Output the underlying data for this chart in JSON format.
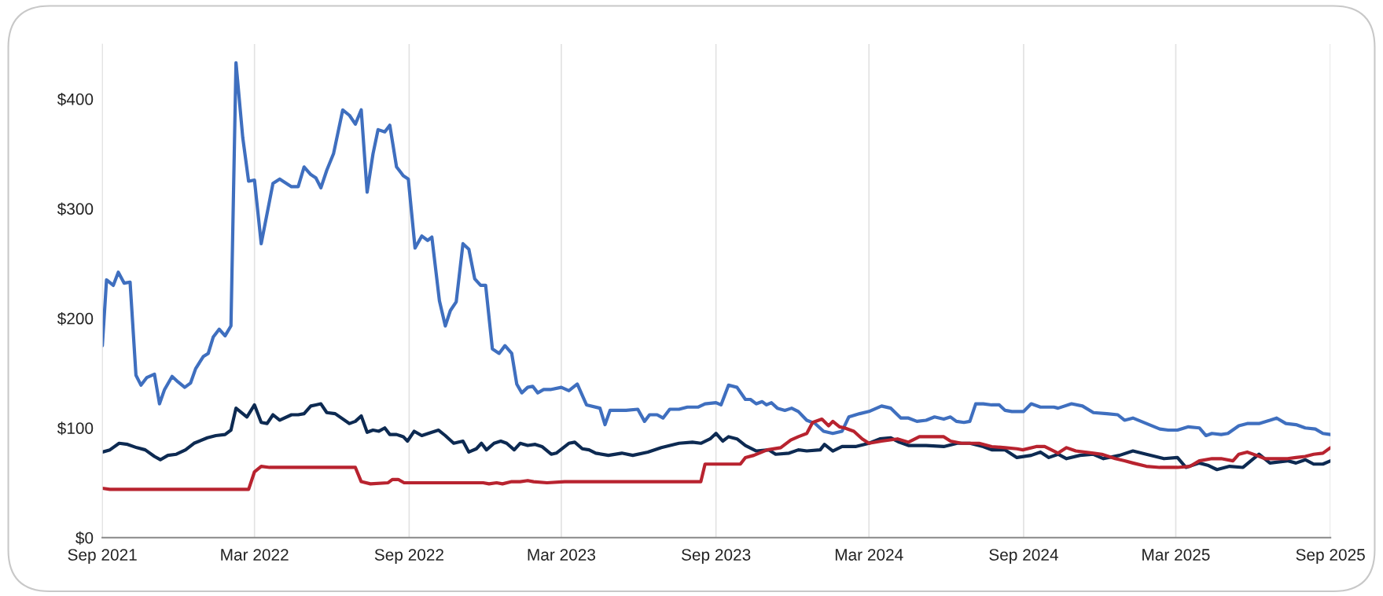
{
  "chart_data": {
    "type": "line",
    "xlim": [
      "2021-09-01",
      "2025-09-01"
    ],
    "xticks": [
      {
        "value": "2021-09-01",
        "label": "Sep 2021"
      },
      {
        "value": "2022-03-01",
        "label": "Mar 2022"
      },
      {
        "value": "2022-09-01",
        "label": "Sep 2022"
      },
      {
        "value": "2023-03-01",
        "label": "Mar 2023"
      },
      {
        "value": "2023-09-01",
        "label": "Sep 2023"
      },
      {
        "value": "2024-03-01",
        "label": "Mar 2024"
      },
      {
        "value": "2024-09-01",
        "label": "Sep 2024"
      },
      {
        "value": "2025-03-01",
        "label": "Mar 2025"
      },
      {
        "value": "2025-09-01",
        "label": "Sep 2025"
      }
    ],
    "ylim": [
      0,
      450
    ],
    "yticks": [
      {
        "value": 0,
        "label": "$0"
      },
      {
        "value": 100,
        "label": "$100"
      },
      {
        "value": 200,
        "label": "$200"
      },
      {
        "value": 300,
        "label": "$300"
      },
      {
        "value": 400,
        "label": "$400"
      }
    ],
    "grid": "x",
    "marker": "none",
    "line_style": "solid",
    "series": [
      {
        "color": "#3f6fbf",
        "x": [
          "2021-09-01",
          "2021-09-06",
          "2021-09-14",
          "2021-09-20",
          "2021-09-27",
          "2021-10-04",
          "2021-10-11",
          "2021-10-17",
          "2021-10-24",
          "2021-11-02",
          "2021-11-08",
          "2021-11-14",
          "2021-11-23",
          "2021-11-30",
          "2021-12-08",
          "2021-12-15",
          "2021-12-21",
          "2021-12-30",
          "2022-01-05",
          "2022-01-11",
          "2022-01-18",
          "2022-01-25",
          "2022-02-01",
          "2022-02-07",
          "2022-02-15",
          "2022-02-22",
          "2022-03-01",
          "2022-03-09",
          "2022-03-23",
          "2022-03-31",
          "2022-04-14",
          "2022-04-22",
          "2022-04-29",
          "2022-05-07",
          "2022-05-13",
          "2022-05-19",
          "2022-05-26",
          "2022-06-03",
          "2022-06-14",
          "2022-06-22",
          "2022-06-29",
          "2022-07-06",
          "2022-07-13",
          "2022-07-20",
          "2022-07-26",
          "2022-08-03",
          "2022-08-09",
          "2022-08-17",
          "2022-08-25",
          "2022-08-31",
          "2022-09-08",
          "2022-09-16",
          "2022-09-23",
          "2022-09-28",
          "2022-10-07",
          "2022-10-14",
          "2022-10-20",
          "2022-10-27",
          "2022-11-04",
          "2022-11-11",
          "2022-11-18",
          "2022-11-25",
          "2022-12-01",
          "2022-12-09",
          "2022-12-17",
          "2022-12-24",
          "2023-01-01",
          "2023-01-07",
          "2023-01-13",
          "2023-01-20",
          "2023-01-26",
          "2023-02-01",
          "2023-02-08",
          "2023-02-16",
          "2023-03-01",
          "2023-03-10",
          "2023-03-20",
          "2023-03-31",
          "2023-04-16",
          "2023-04-22",
          "2023-04-28",
          "2023-05-17",
          "2023-05-31",
          "2023-06-08",
          "2023-06-14",
          "2023-06-23",
          "2023-06-30",
          "2023-07-08",
          "2023-07-19",
          "2023-07-29",
          "2023-08-11",
          "2023-08-19",
          "2023-09-01",
          "2023-09-07",
          "2023-09-16",
          "2023-09-26",
          "2023-10-06",
          "2023-10-12",
          "2023-10-19",
          "2023-10-26",
          "2023-10-31",
          "2023-11-06",
          "2023-11-13",
          "2023-11-22",
          "2023-11-30",
          "2023-12-08",
          "2023-12-18",
          "2023-12-28",
          "2024-01-07",
          "2024-01-18",
          "2024-01-29",
          "2024-02-06",
          "2024-02-19",
          "2024-03-01",
          "2024-03-16",
          "2024-03-27",
          "2024-04-08",
          "2024-04-17",
          "2024-04-27",
          "2024-05-08",
          "2024-05-18",
          "2024-05-29",
          "2024-06-06",
          "2024-06-13",
          "2024-06-22",
          "2024-06-29",
          "2024-07-06",
          "2024-07-15",
          "2024-07-25",
          "2024-08-03",
          "2024-08-10",
          "2024-08-18",
          "2024-09-01",
          "2024-09-10",
          "2024-09-21",
          "2024-10-07",
          "2024-10-12",
          "2024-10-28",
          "2024-11-10",
          "2024-11-23",
          "2024-12-09",
          "2024-12-22",
          "2024-12-30",
          "2025-01-09",
          "2025-01-25",
          "2025-02-10",
          "2025-02-20",
          "2025-03-03",
          "2025-03-16",
          "2025-03-29",
          "2025-04-06",
          "2025-04-13",
          "2025-04-24",
          "2025-05-02",
          "2025-05-15",
          "2025-05-25",
          "2025-06-08",
          "2025-06-21",
          "2025-06-29",
          "2025-07-10",
          "2025-07-22",
          "2025-08-02",
          "2025-08-14",
          "2025-08-23",
          "2025-09-01"
        ],
        "values": [
          175,
          235,
          230,
          242,
          232,
          233,
          148,
          139,
          146,
          149,
          122,
          135,
          147,
          142,
          137,
          141,
          154,
          165,
          168,
          183,
          190,
          184,
          193,
          433,
          365,
          325,
          326,
          268,
          323,
          327,
          320,
          320,
          338,
          331,
          328,
          319,
          335,
          350,
          390,
          385,
          377,
          390,
          315,
          350,
          372,
          370,
          376,
          338,
          330,
          327,
          264,
          275,
          271,
          274,
          216,
          193,
          207,
          215,
          268,
          263,
          236,
          230,
          230,
          172,
          168,
          175,
          168,
          140,
          132,
          137,
          138,
          132,
          135,
          135,
          137,
          134,
          140,
          121,
          118,
          103,
          116,
          116,
          117,
          106,
          112,
          112,
          109,
          117,
          117,
          119,
          119,
          122,
          123,
          121,
          139,
          137,
          126,
          126,
          122,
          124,
          121,
          123,
          118,
          116,
          118,
          115,
          107,
          104,
          97,
          95,
          97,
          110,
          113,
          115,
          120,
          118,
          109,
          109,
          106,
          107,
          110,
          108,
          110,
          106,
          105,
          106,
          122,
          122,
          121,
          121,
          116,
          115,
          115,
          122,
          119,
          119,
          118,
          122,
          120,
          114,
          113,
          112,
          107,
          109,
          104,
          99,
          98,
          98,
          101,
          100,
          93,
          95,
          94,
          95,
          102,
          104,
          104,
          107,
          109,
          104,
          103,
          100,
          99,
          95,
          94
        ]
      },
      {
        "color": "#0d2a52",
        "x": [
          "2021-09-01",
          "2021-09-10",
          "2021-09-21",
          "2021-10-01",
          "2021-10-12",
          "2021-10-22",
          "2021-11-02",
          "2021-11-09",
          "2021-11-18",
          "2021-11-28",
          "2021-12-09",
          "2021-12-19",
          "2022-01-04",
          "2022-01-14",
          "2022-01-25",
          "2022-02-01",
          "2022-02-07",
          "2022-02-20",
          "2022-03-01",
          "2022-03-09",
          "2022-03-16",
          "2022-03-23",
          "2022-03-31",
          "2022-04-14",
          "2022-04-22",
          "2022-04-29",
          "2022-05-07",
          "2022-05-13",
          "2022-05-19",
          "2022-05-26",
          "2022-06-05",
          "2022-06-22",
          "2022-06-29",
          "2022-07-06",
          "2022-07-13",
          "2022-07-20",
          "2022-07-27",
          "2022-08-03",
          "2022-08-09",
          "2022-08-17",
          "2022-08-25",
          "2022-08-30",
          "2022-09-07",
          "2022-09-16",
          "2022-09-28",
          "2022-10-06",
          "2022-10-14",
          "2022-10-24",
          "2022-11-04",
          "2022-11-11",
          "2022-11-20",
          "2022-11-26",
          "2022-12-02",
          "2022-12-11",
          "2022-12-19",
          "2022-12-26",
          "2023-01-04",
          "2023-01-11",
          "2023-01-20",
          "2023-01-29",
          "2023-02-06",
          "2023-02-17",
          "2023-02-23",
          "2023-03-10",
          "2023-03-17",
          "2023-03-26",
          "2023-04-03",
          "2023-04-11",
          "2023-04-26",
          "2023-05-12",
          "2023-05-25",
          "2023-06-12",
          "2023-06-28",
          "2023-07-19",
          "2023-08-04",
          "2023-08-14",
          "2023-08-25",
          "2023-09-01",
          "2023-09-09",
          "2023-09-16",
          "2023-09-26",
          "2023-10-06",
          "2023-10-19",
          "2023-11-03",
          "2023-11-11",
          "2023-11-27",
          "2023-12-08",
          "2023-12-18",
          "2024-01-03",
          "2024-01-08",
          "2024-01-18",
          "2024-01-29",
          "2024-02-14",
          "2024-03-01",
          "2024-03-14",
          "2024-03-27",
          "2024-04-06",
          "2024-04-17",
          "2024-05-08",
          "2024-05-29",
          "2024-06-14",
          "2024-06-29",
          "2024-07-15",
          "2024-07-25",
          "2024-08-10",
          "2024-08-24",
          "2024-09-10",
          "2024-09-21",
          "2024-10-01",
          "2024-10-12",
          "2024-10-22",
          "2024-11-07",
          "2024-11-23",
          "2024-12-05",
          "2024-12-24",
          "2025-01-09",
          "2025-01-25",
          "2025-02-15",
          "2025-03-03",
          "2025-03-13",
          "2025-03-29",
          "2025-04-08",
          "2025-04-19",
          "2025-05-04",
          "2025-05-20",
          "2025-05-31",
          "2025-06-08",
          "2025-06-21",
          "2025-07-12",
          "2025-07-22",
          "2025-08-02",
          "2025-08-12",
          "2025-08-23",
          "2025-09-01"
        ],
        "values": [
          78,
          80,
          86,
          85,
          82,
          80,
          74,
          71,
          75,
          76,
          80,
          86,
          91,
          93,
          94,
          98,
          118,
          110,
          121,
          105,
          104,
          112,
          107,
          112,
          112,
          113,
          120,
          121,
          122,
          114,
          113,
          104,
          106,
          111,
          96,
          98,
          97,
          100,
          94,
          94,
          92,
          88,
          97,
          93,
          96,
          98,
          93,
          86,
          88,
          78,
          81,
          86,
          80,
          86,
          88,
          86,
          80,
          86,
          84,
          85,
          83,
          76,
          77,
          86,
          87,
          81,
          80,
          77,
          75,
          77,
          75,
          78,
          82,
          86,
          87,
          86,
          90,
          95,
          88,
          92,
          90,
          84,
          79,
          80,
          76,
          77,
          80,
          79,
          80,
          85,
          79,
          83,
          83,
          86,
          90,
          91,
          87,
          84,
          84,
          83,
          86,
          86,
          83,
          80,
          80,
          73,
          75,
          78,
          73,
          76,
          72,
          75,
          76,
          72,
          75,
          79,
          76,
          72,
          73,
          64,
          68,
          66,
          62,
          65,
          64,
          71,
          76,
          68,
          70,
          68,
          71,
          67,
          67,
          70
        ]
      },
      {
        "color": "#b8232f",
        "x": [
          "2021-09-01",
          "2021-09-10",
          "2022-02-22",
          "2022-03-01",
          "2022-03-09",
          "2022-03-19",
          "2022-06-29",
          "2022-07-06",
          "2022-07-17",
          "2022-08-07",
          "2022-08-12",
          "2022-08-19",
          "2022-08-26",
          "2022-09-07",
          "2022-11-28",
          "2022-12-05",
          "2022-12-14",
          "2022-12-21",
          "2023-01-01",
          "2023-01-11",
          "2023-01-20",
          "2023-01-27",
          "2023-02-12",
          "2023-03-05",
          "2023-05-07",
          "2023-07-29",
          "2023-08-14",
          "2023-08-19",
          "2023-09-30",
          "2023-10-06",
          "2023-10-16",
          "2023-11-01",
          "2023-11-17",
          "2023-11-29",
          "2023-12-08",
          "2023-12-18",
          "2023-12-25",
          "2024-01-05",
          "2024-01-13",
          "2024-01-18",
          "2024-01-26",
          "2024-02-01",
          "2024-02-12",
          "2024-02-22",
          "2024-03-01",
          "2024-03-16",
          "2024-04-04",
          "2024-04-17",
          "2024-04-30",
          "2024-05-11",
          "2024-05-29",
          "2024-06-06",
          "2024-06-19",
          "2024-07-10",
          "2024-07-25",
          "2024-08-10",
          "2024-08-24",
          "2024-08-31",
          "2024-09-16",
          "2024-09-26",
          "2024-10-12",
          "2024-10-22",
          "2024-11-02",
          "2024-11-23",
          "2024-12-03",
          "2024-12-19",
          "2024-12-30",
          "2025-01-09",
          "2025-01-25",
          "2025-02-10",
          "2025-02-15",
          "2025-03-03",
          "2025-03-18",
          "2025-03-29",
          "2025-04-13",
          "2025-04-24",
          "2025-05-08",
          "2025-05-15",
          "2025-05-25",
          "2025-06-05",
          "2025-06-15",
          "2025-07-12",
          "2025-07-22",
          "2025-08-02",
          "2025-08-12",
          "2025-08-23",
          "2025-09-01"
        ],
        "values": [
          45,
          44,
          44,
          60,
          65,
          64,
          64,
          51,
          49,
          50,
          53,
          53,
          50,
          50,
          50,
          49,
          50,
          49,
          51,
          51,
          52,
          51,
          50,
          51,
          51,
          51,
          51,
          67,
          67,
          73,
          75,
          80,
          82,
          89,
          92,
          95,
          105,
          108,
          102,
          106,
          101,
          100,
          97,
          90,
          86,
          88,
          90,
          87,
          92,
          92,
          92,
          88,
          86,
          86,
          83,
          82,
          81,
          80,
          83,
          83,
          77,
          82,
          79,
          77,
          76,
          72,
          70,
          68,
          65,
          64,
          64,
          64,
          65,
          70,
          72,
          72,
          70,
          76,
          78,
          75,
          72,
          72,
          73,
          74,
          76,
          77,
          82
        ]
      }
    ]
  }
}
